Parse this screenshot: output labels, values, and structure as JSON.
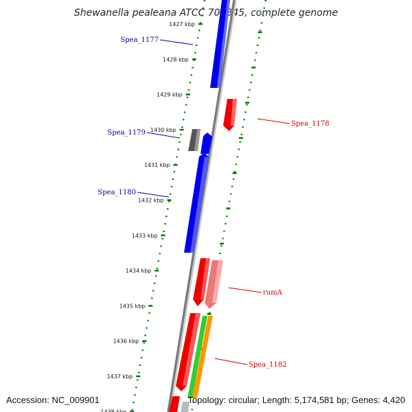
{
  "title": "Shewanella pealeana ATCC 700345, complete genome",
  "footer": {
    "accession": "Accession: NC_009901",
    "topology": "Topology: circular; Length: 5,174,581 bp; Genes: 4,420"
  },
  "colors": {
    "plus_strand": "#0000ee",
    "minus_strand": "#ee0000",
    "rna_gene": "#ee8888",
    "pseudo_gene": "#666666",
    "green_feature": "#33cc33",
    "orange_feature": "#ff9900",
    "backbone": "#777777",
    "tick": "#007700",
    "left_label": "#000099",
    "right_label": "#cc0000"
  },
  "scale_kbp": [
    "1427 kbp",
    "1428 kbp",
    "1429 kbp",
    "1430 kbp",
    "1431 kbp",
    "1432 kbp",
    "1433 kbp",
    "1434 kbp",
    "1435 kbp",
    "1436 kbp",
    "1437 kbp",
    "1438 kbp"
  ],
  "gene_labels": [
    {
      "text": "Spea_1177",
      "side": "left"
    },
    {
      "text": "Spea_1178",
      "side": "right"
    },
    {
      "text": "Spea_1179",
      "side": "left"
    },
    {
      "text": "Spea_1180",
      "side": "left"
    },
    {
      "text": "rumA",
      "side": "right"
    },
    {
      "text": "Spea_1182",
      "side": "right"
    }
  ]
}
